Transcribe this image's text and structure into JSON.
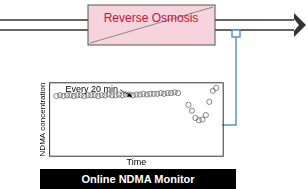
{
  "diagram": {
    "process": {
      "label": "Reverse Osmosis"
    },
    "monitor": {
      "label": "Online NDMA Monitor"
    }
  },
  "chart_data": {
    "type": "scatter",
    "x_label": "Time",
    "y_label": "NDMA concentration",
    "annotation": "Every 20 min",
    "x": [
      0.4,
      0.6,
      0.8,
      1.0,
      1.2,
      1.4,
      1.6,
      1.8,
      2.0,
      2.2,
      2.4,
      2.6,
      2.8,
      3.0,
      3.2,
      3.4,
      3.6,
      3.8,
      4.0,
      4.2,
      4.4,
      4.6,
      4.8,
      5.0,
      5.2,
      5.4,
      5.6,
      5.8,
      6.0,
      6.2,
      6.4,
      6.6,
      6.8,
      7.0,
      7.2,
      7.4,
      8.0,
      8.2,
      8.4,
      8.6,
      8.8,
      9.0,
      9.2,
      9.4,
      9.6
    ],
    "values": [
      8.2,
      8.3,
      8.2,
      8.3,
      8.3,
      8.2,
      8.3,
      8.3,
      8.2,
      8.3,
      8.3,
      8.3,
      8.2,
      8.3,
      8.3,
      8.4,
      8.3,
      8.3,
      8.4,
      8.3,
      8.4,
      8.4,
      8.3,
      8.4,
      8.4,
      8.5,
      8.4,
      8.5,
      8.5,
      8.5,
      8.6,
      8.5,
      8.6,
      8.6,
      8.7,
      8.6,
      7.0,
      6.2,
      5.2,
      4.9,
      5.0,
      5.6,
      7.4,
      8.9,
      9.3
    ],
    "xlim": [
      0,
      10
    ],
    "ylim": [
      0,
      10
    ],
    "tick_labels": false,
    "grid": false,
    "marker": "circle",
    "color": "#666666"
  }
}
